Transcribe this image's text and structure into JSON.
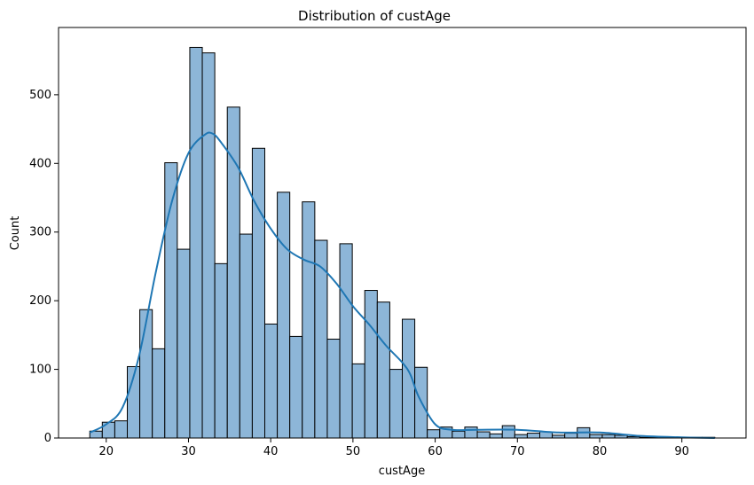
{
  "chart_data": {
    "type": "bar",
    "title": "Distribution of custAge",
    "xlabel": "custAge",
    "ylabel": "Count",
    "xlim": [
      14.2,
      97.8
    ],
    "ylim": [
      0,
      598
    ],
    "xticks": [
      20,
      30,
      40,
      50,
      60,
      70,
      80,
      90
    ],
    "yticks": [
      0,
      100,
      200,
      300,
      400,
      500
    ],
    "bin_start": 18,
    "bin_width": 1.52,
    "counts": [
      10,
      23,
      25,
      104,
      187,
      130,
      401,
      275,
      569,
      561,
      254,
      482,
      297,
      422,
      166,
      358,
      148,
      344,
      288,
      144,
      283,
      108,
      215,
      198,
      100,
      173,
      103,
      12,
      16,
      10,
      16,
      9,
      6,
      18,
      5,
      7,
      9,
      4,
      7,
      15,
      5,
      5,
      4,
      2,
      1,
      1,
      1,
      1,
      1,
      1
    ],
    "kde": {
      "x": [
        18,
        20,
        22,
        24,
        26,
        28,
        30,
        32,
        33,
        34,
        36,
        38,
        40,
        42,
        44,
        46,
        48,
        50,
        52,
        54,
        56,
        57,
        58,
        60,
        62,
        65,
        70,
        75,
        80,
        85,
        90,
        94
      ],
      "y": [
        8,
        20,
        45,
        120,
        240,
        345,
        415,
        442,
        443,
        430,
        395,
        345,
        305,
        275,
        260,
        250,
        225,
        192,
        165,
        135,
        110,
        92,
        60,
        20,
        12,
        12,
        12,
        8,
        8,
        3,
        1,
        0
      ]
    },
    "colors": {
      "bar_fill": "#8db6d8",
      "bar_edge": "#000000",
      "kde_line": "#1f77b4"
    },
    "grid": false
  }
}
